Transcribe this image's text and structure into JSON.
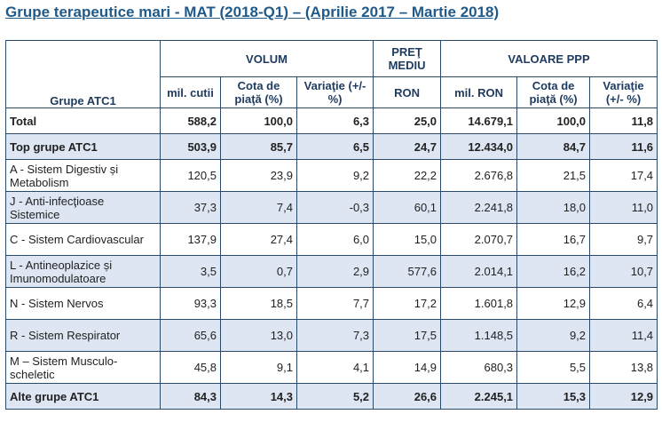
{
  "title": "Grupe terapeutice mari - MAT (2018-Q1) – (Aprilie 2017 – Martie 2018)",
  "header": {
    "row_label": "Grupe ATC1",
    "group_volum": "VOLUM",
    "group_pret": "PREŢ MEDIU",
    "group_valoare": "VALOARE PPP",
    "volum_cols": [
      "mil. cutii",
      "Cota de piaţă (%)",
      "Variaţie (+/- %)"
    ],
    "pret_col": "RON",
    "valoare_cols": [
      "mil. RON",
      "Cota de piaţă (%)",
      "Variaţie (+/- %)"
    ]
  },
  "rows": [
    {
      "name": "Total",
      "v": [
        "588,2",
        "100,0",
        "6,3",
        "25,0",
        "14.679,1",
        "100,0",
        "11,8"
      ]
    },
    {
      "name": "Top grupe ATC1",
      "v": [
        "503,9",
        "85,7",
        "6,5",
        "24,7",
        "12.434,0",
        "84,7",
        "11,6"
      ]
    },
    {
      "name": "A - Sistem Digestiv și Metabolism",
      "v": [
        "120,5",
        "23,9",
        "9,2",
        "22,2",
        "2.676,8",
        "21,5",
        "17,4"
      ]
    },
    {
      "name": "J - Anti-infecţioase Sistemice",
      "v": [
        "37,3",
        "7,4",
        "-0,3",
        "60,1",
        "2.241,8",
        "18,0",
        "11,0"
      ]
    },
    {
      "name": "C - Sistem Cardiovascular",
      "v": [
        "137,9",
        "27,4",
        "6,0",
        "15,0",
        "2.070,7",
        "16,7",
        "9,7"
      ]
    },
    {
      "name": "L - Antineoplazice și Imunomodulatoare",
      "v": [
        "3,5",
        "0,7",
        "2,9",
        "577,6",
        "2.014,1",
        "16,2",
        "10,7"
      ]
    },
    {
      "name": "N - Sistem Nervos",
      "v": [
        "93,3",
        "18,5",
        "7,7",
        "17,2",
        "1.601,8",
        "12,9",
        "6,4"
      ]
    },
    {
      "name": "R - Sistem Respirator",
      "v": [
        "65,6",
        "13,0",
        "7,3",
        "17,5",
        "1.148,5",
        "9,2",
        "11,4"
      ]
    },
    {
      "name": "M – Sistem Musculo-scheletic",
      "v": [
        "45,8",
        "9,1",
        "4,1",
        "14,9",
        "680,3",
        "5,5",
        "13,8"
      ]
    },
    {
      "name": "Alte grupe ATC1",
      "v": [
        "84,3",
        "14,3",
        "5,2",
        "26,6",
        "2.245,1",
        "15,3",
        "12,9"
      ]
    }
  ]
}
